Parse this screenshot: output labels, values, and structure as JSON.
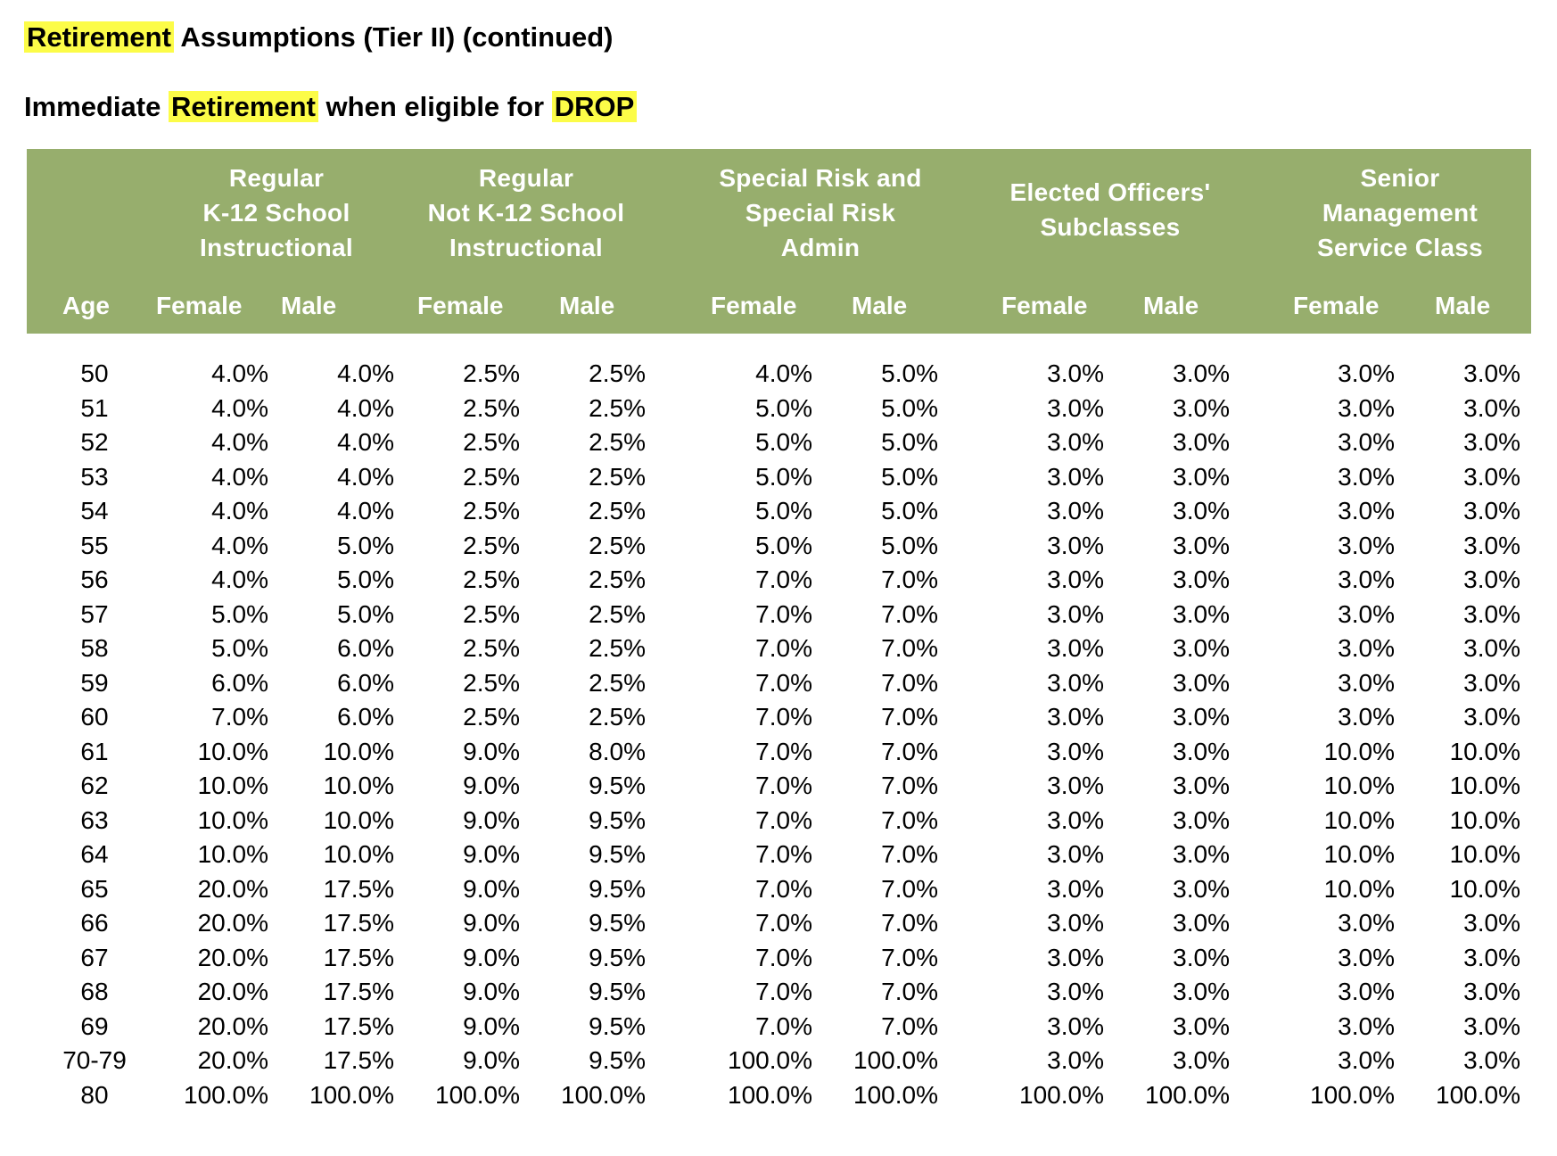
{
  "headings": {
    "line1": {
      "hl": "Retirement",
      "rest": "Assumptions (Tier II) (continued)"
    },
    "line2": {
      "pre": "Immediate",
      "hl1": "Retirement",
      "mid": "when eligible for",
      "hl2": "DROP"
    }
  },
  "table": {
    "age_label": "Age",
    "groups": [
      "Regular\nK-12 School\nInstructional",
      "Regular\nNot K-12 School\nInstructional",
      "Special Risk and\nSpecial Risk\nAdmin",
      "Elected Officers'\nSubclasses",
      "Senior\nManagement\nService Class"
    ],
    "female_label": "Female",
    "male_label": "Male",
    "rows": [
      {
        "age": "50",
        "v": [
          "4.0%",
          "4.0%",
          "2.5%",
          "2.5%",
          "4.0%",
          "5.0%",
          "3.0%",
          "3.0%",
          "3.0%",
          "3.0%"
        ]
      },
      {
        "age": "51",
        "v": [
          "4.0%",
          "4.0%",
          "2.5%",
          "2.5%",
          "5.0%",
          "5.0%",
          "3.0%",
          "3.0%",
          "3.0%",
          "3.0%"
        ]
      },
      {
        "age": "52",
        "v": [
          "4.0%",
          "4.0%",
          "2.5%",
          "2.5%",
          "5.0%",
          "5.0%",
          "3.0%",
          "3.0%",
          "3.0%",
          "3.0%"
        ]
      },
      {
        "age": "53",
        "v": [
          "4.0%",
          "4.0%",
          "2.5%",
          "2.5%",
          "5.0%",
          "5.0%",
          "3.0%",
          "3.0%",
          "3.0%",
          "3.0%"
        ]
      },
      {
        "age": "54",
        "v": [
          "4.0%",
          "4.0%",
          "2.5%",
          "2.5%",
          "5.0%",
          "5.0%",
          "3.0%",
          "3.0%",
          "3.0%",
          "3.0%"
        ]
      },
      {
        "age": "55",
        "v": [
          "4.0%",
          "5.0%",
          "2.5%",
          "2.5%",
          "5.0%",
          "5.0%",
          "3.0%",
          "3.0%",
          "3.0%",
          "3.0%"
        ]
      },
      {
        "age": "56",
        "v": [
          "4.0%",
          "5.0%",
          "2.5%",
          "2.5%",
          "7.0%",
          "7.0%",
          "3.0%",
          "3.0%",
          "3.0%",
          "3.0%"
        ]
      },
      {
        "age": "57",
        "v": [
          "5.0%",
          "5.0%",
          "2.5%",
          "2.5%",
          "7.0%",
          "7.0%",
          "3.0%",
          "3.0%",
          "3.0%",
          "3.0%"
        ]
      },
      {
        "age": "58",
        "v": [
          "5.0%",
          "6.0%",
          "2.5%",
          "2.5%",
          "7.0%",
          "7.0%",
          "3.0%",
          "3.0%",
          "3.0%",
          "3.0%"
        ]
      },
      {
        "age": "59",
        "v": [
          "6.0%",
          "6.0%",
          "2.5%",
          "2.5%",
          "7.0%",
          "7.0%",
          "3.0%",
          "3.0%",
          "3.0%",
          "3.0%"
        ]
      },
      {
        "age": "60",
        "v": [
          "7.0%",
          "6.0%",
          "2.5%",
          "2.5%",
          "7.0%",
          "7.0%",
          "3.0%",
          "3.0%",
          "3.0%",
          "3.0%"
        ]
      },
      {
        "age": "61",
        "v": [
          "10.0%",
          "10.0%",
          "9.0%",
          "8.0%",
          "7.0%",
          "7.0%",
          "3.0%",
          "3.0%",
          "10.0%",
          "10.0%"
        ]
      },
      {
        "age": "62",
        "v": [
          "10.0%",
          "10.0%",
          "9.0%",
          "9.5%",
          "7.0%",
          "7.0%",
          "3.0%",
          "3.0%",
          "10.0%",
          "10.0%"
        ]
      },
      {
        "age": "63",
        "v": [
          "10.0%",
          "10.0%",
          "9.0%",
          "9.5%",
          "7.0%",
          "7.0%",
          "3.0%",
          "3.0%",
          "10.0%",
          "10.0%"
        ]
      },
      {
        "age": "64",
        "v": [
          "10.0%",
          "10.0%",
          "9.0%",
          "9.5%",
          "7.0%",
          "7.0%",
          "3.0%",
          "3.0%",
          "10.0%",
          "10.0%"
        ]
      },
      {
        "age": "65",
        "v": [
          "20.0%",
          "17.5%",
          "9.0%",
          "9.5%",
          "7.0%",
          "7.0%",
          "3.0%",
          "3.0%",
          "10.0%",
          "10.0%"
        ]
      },
      {
        "age": "66",
        "v": [
          "20.0%",
          "17.5%",
          "9.0%",
          "9.5%",
          "7.0%",
          "7.0%",
          "3.0%",
          "3.0%",
          "3.0%",
          "3.0%"
        ]
      },
      {
        "age": "67",
        "v": [
          "20.0%",
          "17.5%",
          "9.0%",
          "9.5%",
          "7.0%",
          "7.0%",
          "3.0%",
          "3.0%",
          "3.0%",
          "3.0%"
        ]
      },
      {
        "age": "68",
        "v": [
          "20.0%",
          "17.5%",
          "9.0%",
          "9.5%",
          "7.0%",
          "7.0%",
          "3.0%",
          "3.0%",
          "3.0%",
          "3.0%"
        ]
      },
      {
        "age": "69",
        "v": [
          "20.0%",
          "17.5%",
          "9.0%",
          "9.5%",
          "7.0%",
          "7.0%",
          "3.0%",
          "3.0%",
          "3.0%",
          "3.0%"
        ]
      },
      {
        "age": "70-79",
        "v": [
          "20.0%",
          "17.5%",
          "9.0%",
          "9.5%",
          "100.0%",
          "100.0%",
          "3.0%",
          "3.0%",
          "3.0%",
          "3.0%"
        ]
      },
      {
        "age": "80",
        "v": [
          "100.0%",
          "100.0%",
          "100.0%",
          "100.0%",
          "100.0%",
          "100.0%",
          "100.0%",
          "100.0%",
          "100.0%",
          "100.0%"
        ]
      }
    ]
  },
  "colors": {
    "header_band": "#97ae6d",
    "highlight": "#fcfc48"
  }
}
